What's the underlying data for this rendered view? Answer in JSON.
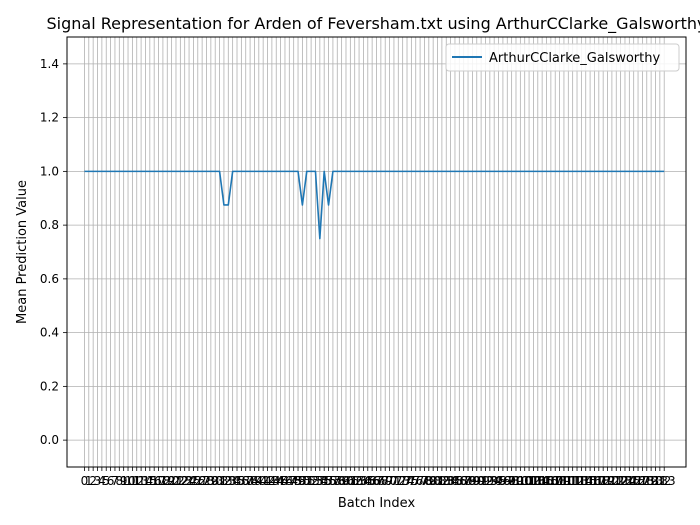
{
  "chart_data": {
    "type": "line",
    "title": "Signal Representation for Arden of Feversham.txt using ArthurCClarke_Galsworthy",
    "xlabel": "Batch Index",
    "ylabel": "Mean Prediction Value",
    "xlim": [
      -4,
      138
    ],
    "ylim": [
      -0.1,
      1.5
    ],
    "yticks": [
      0.0,
      0.2,
      0.4,
      0.6,
      0.8,
      1.0,
      1.2,
      1.4
    ],
    "ytick_labels": [
      "0.0",
      "0.2",
      "0.4",
      "0.6",
      "0.8",
      "1.0",
      "1.2",
      "1.4"
    ],
    "grid": true,
    "legend_position": "upper right",
    "x": [
      0,
      1,
      2,
      3,
      4,
      5,
      6,
      7,
      8,
      9,
      10,
      11,
      12,
      13,
      14,
      15,
      16,
      17,
      18,
      19,
      20,
      21,
      22,
      23,
      24,
      25,
      26,
      27,
      28,
      29,
      30,
      31,
      32,
      33,
      34,
      35,
      36,
      37,
      38,
      39,
      40,
      41,
      42,
      43,
      44,
      45,
      46,
      47,
      48,
      49,
      50,
      51,
      52,
      53,
      54,
      55,
      56,
      57,
      58,
      59,
      60,
      61,
      62,
      63,
      64,
      65,
      66,
      67,
      68,
      69,
      70,
      71,
      72,
      73,
      74,
      75,
      76,
      77,
      78,
      79,
      80,
      81,
      82,
      83,
      84,
      85,
      86,
      87,
      88,
      89,
      90,
      91,
      92,
      93,
      94,
      95,
      96,
      97,
      98,
      99,
      100,
      101,
      102,
      103,
      104,
      105,
      106,
      107,
      108,
      109,
      110,
      111,
      112,
      113,
      114,
      115,
      116,
      117,
      118,
      119,
      120,
      121,
      122,
      123,
      124,
      125,
      126,
      127,
      128,
      129,
      130,
      131,
      132,
      133
    ],
    "series": [
      {
        "name": "ArthurCClarke_Galsworthy",
        "color": "#1f77b4",
        "values": [
          1,
          1,
          1,
          1,
          1,
          1,
          1,
          1,
          1,
          1,
          1,
          1,
          1,
          1,
          1,
          1,
          1,
          1,
          1,
          1,
          1,
          1,
          1,
          1,
          1,
          1,
          1,
          1,
          1,
          1,
          1,
          1,
          0.875,
          0.875,
          1,
          1,
          1,
          1,
          1,
          1,
          1,
          1,
          1,
          1,
          1,
          1,
          1,
          1,
          1,
          1,
          0.875,
          1,
          1,
          1,
          0.75,
          1,
          0.875,
          1,
          1,
          1,
          1,
          1,
          1,
          1,
          1,
          1,
          1,
          1,
          1,
          1,
          1,
          1,
          1,
          1,
          1,
          1,
          1,
          1,
          1,
          1,
          1,
          1,
          1,
          1,
          1,
          1,
          1,
          1,
          1,
          1,
          1,
          1,
          1,
          1,
          1,
          1,
          1,
          1,
          1,
          1,
          1,
          1,
          1,
          1,
          1,
          1,
          1,
          1,
          1,
          1,
          1,
          1,
          1,
          1,
          1,
          1,
          1,
          1,
          1,
          1,
          1,
          1,
          1,
          1,
          1,
          1,
          1,
          1,
          1,
          1,
          1,
          1,
          1,
          1
        ],
        "dips_note_free": true
      }
    ],
    "xtick_labels": [
      "0",
      "1",
      "2",
      "3",
      "4",
      "5",
      "6",
      "7",
      "8",
      "9",
      "10",
      "11",
      "12",
      "13",
      "14",
      "15",
      "16",
      "17",
      "18",
      "19",
      "20",
      "21",
      "22",
      "23",
      "24",
      "25",
      "26",
      "27",
      "28",
      "29",
      "30",
      "31",
      "32",
      "33",
      "34",
      "35",
      "36",
      "37",
      "38",
      "39",
      "40",
      "41",
      "42",
      "43",
      "44",
      "45",
      "46",
      "47",
      "48",
      "49",
      "50",
      "51",
      "52",
      "53",
      "54",
      "55",
      "56",
      "57",
      "58",
      "59",
      "60",
      "61",
      "62",
      "63",
      "64",
      "65",
      "66",
      "67",
      "68",
      "69",
      "70",
      "71",
      "72",
      "73",
      "74",
      "75",
      "76",
      "77",
      "78",
      "79",
      "80",
      "81",
      "82",
      "83",
      "84",
      "85",
      "86",
      "87",
      "88",
      "89",
      "90",
      "91",
      "92",
      "93",
      "94",
      "95",
      "96",
      "97",
      "98",
      "99",
      "100",
      "101",
      "102",
      "103",
      "104",
      "105",
      "106",
      "107",
      "108",
      "109",
      "110",
      "111",
      "112",
      "113",
      "114",
      "115",
      "116",
      "117",
      "118",
      "119",
      "120",
      "121",
      "122",
      "123",
      "124",
      "125",
      "126",
      "127",
      "128",
      "129",
      "130",
      "131",
      "132",
      "133"
    ]
  }
}
